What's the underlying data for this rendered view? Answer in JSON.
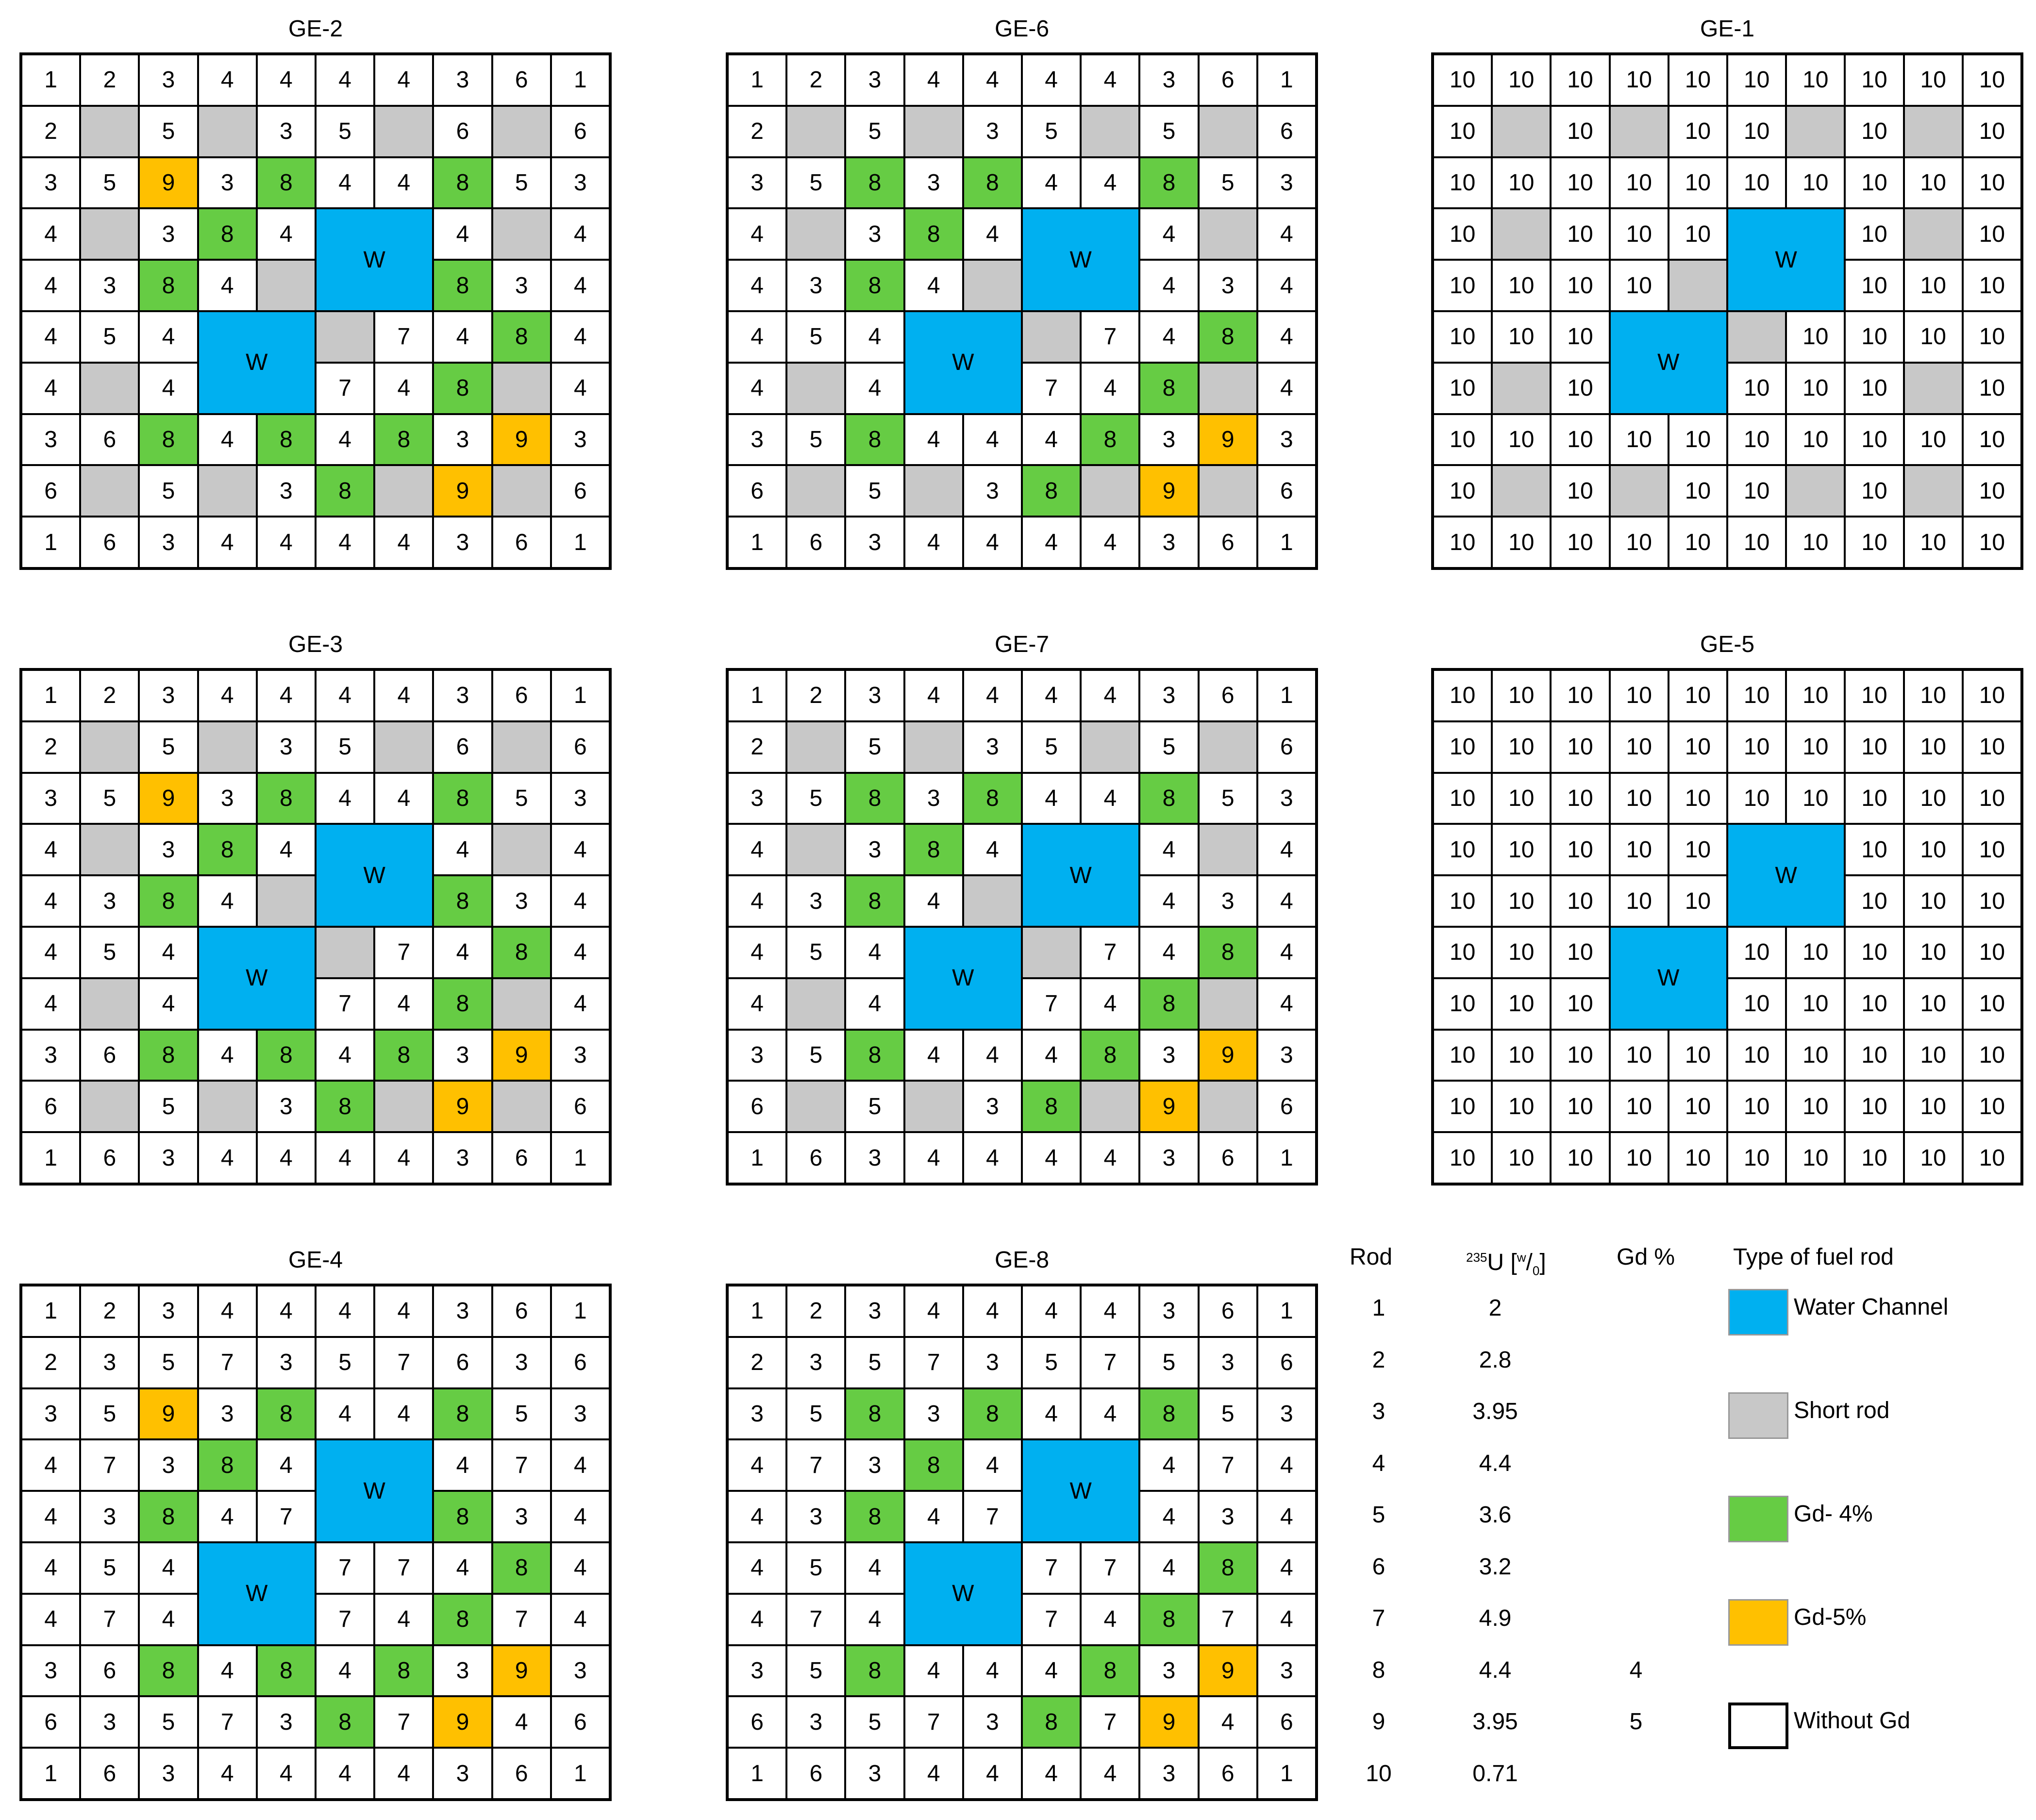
{
  "assemblies": [
    {
      "id": "ge2",
      "title": "GE-2",
      "rows": [
        [
          "1",
          "2",
          "3",
          "4",
          "4",
          "4",
          "4",
          "3",
          "6",
          "1"
        ],
        [
          "2",
          "",
          "5",
          "",
          "3",
          "5",
          "",
          "6",
          "",
          "6"
        ],
        [
          "3",
          "5",
          "9",
          "3",
          "8",
          "4",
          "4",
          "8",
          "5",
          "3"
        ],
        [
          "4",
          "",
          "3",
          "8",
          "4",
          "W",
          "W",
          "4",
          "",
          "4"
        ],
        [
          "4",
          "3",
          "8",
          "4",
          "",
          "W",
          "W",
          "8",
          "3",
          "4"
        ],
        [
          "4",
          "5",
          "4",
          "W",
          "W",
          "",
          "7",
          "4",
          "8",
          "4"
        ],
        [
          "4",
          "",
          "4",
          "W",
          "W",
          "7",
          "4",
          "8",
          "",
          "4"
        ],
        [
          "3",
          "6",
          "8",
          "4",
          "8",
          "4",
          "8",
          "3",
          "9",
          "3"
        ],
        [
          "6",
          "",
          "5",
          "",
          "3",
          "8",
          "",
          "9",
          "",
          "6"
        ],
        [
          "1",
          "6",
          "3",
          "4",
          "4",
          "4",
          "4",
          "3",
          "6",
          "1"
        ]
      ]
    },
    {
      "id": "ge6",
      "title": "GE-6",
      "rows": [
        [
          "1",
          "2",
          "3",
          "4",
          "4",
          "4",
          "4",
          "3",
          "6",
          "1"
        ],
        [
          "2",
          "",
          "5",
          "",
          "3",
          "5",
          "",
          "5",
          "",
          "6"
        ],
        [
          "3",
          "5",
          "8",
          "3",
          "8",
          "4",
          "4",
          "8",
          "5",
          "3"
        ],
        [
          "4",
          "",
          "3",
          "8",
          "4",
          "W",
          "W",
          "4",
          "",
          "4"
        ],
        [
          "4",
          "3",
          "8",
          "4",
          "",
          "W",
          "W",
          "4",
          "3",
          "4"
        ],
        [
          "4",
          "5",
          "4",
          "W",
          "W",
          "",
          "7",
          "4",
          "8",
          "4"
        ],
        [
          "4",
          "",
          "4",
          "W",
          "W",
          "7",
          "4",
          "8",
          "",
          "4"
        ],
        [
          "3",
          "5",
          "8",
          "4",
          "4",
          "4",
          "8",
          "3",
          "9",
          "3"
        ],
        [
          "6",
          "",
          "5",
          "",
          "3",
          "8",
          "",
          "9",
          "",
          "6"
        ],
        [
          "1",
          "6",
          "3",
          "4",
          "4",
          "4",
          "4",
          "3",
          "6",
          "1"
        ]
      ]
    },
    {
      "id": "ge1",
      "title": "GE-1",
      "rows": [
        [
          "10",
          "10",
          "10",
          "10",
          "10",
          "10",
          "10",
          "10",
          "10",
          "10"
        ],
        [
          "10",
          "",
          "10",
          "",
          "10",
          "10",
          "",
          "10",
          "",
          "10"
        ],
        [
          "10",
          "10",
          "10",
          "10",
          "10",
          "10",
          "10",
          "10",
          "10",
          "10"
        ],
        [
          "10",
          "",
          "10",
          "10",
          "10",
          "W",
          "W",
          "10",
          "",
          "10"
        ],
        [
          "10",
          "10",
          "10",
          "10",
          "",
          "W",
          "W",
          "10",
          "10",
          "10"
        ],
        [
          "10",
          "10",
          "10",
          "W",
          "W",
          "",
          "10",
          "10",
          "10",
          "10"
        ],
        [
          "10",
          "",
          "10",
          "W",
          "W",
          "10",
          "10",
          "10",
          "",
          "10"
        ],
        [
          "10",
          "10",
          "10",
          "10",
          "10",
          "10",
          "10",
          "10",
          "10",
          "10"
        ],
        [
          "10",
          "",
          "10",
          "",
          "10",
          "10",
          "",
          "10",
          "",
          "10"
        ],
        [
          "10",
          "10",
          "10",
          "10",
          "10",
          "10",
          "10",
          "10",
          "10",
          "10"
        ]
      ]
    },
    {
      "id": "ge3",
      "title": "GE-3",
      "rows": [
        [
          "1",
          "2",
          "3",
          "4",
          "4",
          "4",
          "4",
          "3",
          "6",
          "1"
        ],
        [
          "2",
          "",
          "5",
          "",
          "3",
          "5",
          "",
          "6",
          "",
          "6"
        ],
        [
          "3",
          "5",
          "9",
          "3",
          "8",
          "4",
          "4",
          "8",
          "5",
          "3"
        ],
        [
          "4",
          "",
          "3",
          "8",
          "4",
          "W",
          "W",
          "4",
          "",
          "4"
        ],
        [
          "4",
          "3",
          "8",
          "4",
          "",
          "W",
          "W",
          "8",
          "3",
          "4"
        ],
        [
          "4",
          "5",
          "4",
          "W",
          "W",
          "",
          "7",
          "4",
          "8",
          "4"
        ],
        [
          "4",
          "",
          "4",
          "W",
          "W",
          "7",
          "4",
          "8",
          "",
          "4"
        ],
        [
          "3",
          "6",
          "8",
          "4",
          "8",
          "4",
          "8",
          "3",
          "9",
          "3"
        ],
        [
          "6",
          "",
          "5",
          "",
          "3",
          "8",
          "",
          "9",
          "",
          "6"
        ],
        [
          "1",
          "6",
          "3",
          "4",
          "4",
          "4",
          "4",
          "3",
          "6",
          "1"
        ]
      ]
    },
    {
      "id": "ge7",
      "title": "GE-7",
      "rows": [
        [
          "1",
          "2",
          "3",
          "4",
          "4",
          "4",
          "4",
          "3",
          "6",
          "1"
        ],
        [
          "2",
          "",
          "5",
          "",
          "3",
          "5",
          "",
          "5",
          "",
          "6"
        ],
        [
          "3",
          "5",
          "8",
          "3",
          "8",
          "4",
          "4",
          "8",
          "5",
          "3"
        ],
        [
          "4",
          "",
          "3",
          "8",
          "4",
          "W",
          "W",
          "4",
          "",
          "4"
        ],
        [
          "4",
          "3",
          "8",
          "4",
          "",
          "W",
          "W",
          "4",
          "3",
          "4"
        ],
        [
          "4",
          "5",
          "4",
          "W",
          "W",
          "",
          "7",
          "4",
          "8",
          "4"
        ],
        [
          "4",
          "",
          "4",
          "W",
          "W",
          "7",
          "4",
          "8",
          "",
          "4"
        ],
        [
          "3",
          "5",
          "8",
          "4",
          "4",
          "4",
          "8",
          "3",
          "9",
          "3"
        ],
        [
          "6",
          "",
          "5",
          "",
          "3",
          "8",
          "",
          "9",
          "",
          "6"
        ],
        [
          "1",
          "6",
          "3",
          "4",
          "4",
          "4",
          "4",
          "3",
          "6",
          "1"
        ]
      ]
    },
    {
      "id": "ge5",
      "title": "GE-5",
      "rows": [
        [
          "10",
          "10",
          "10",
          "10",
          "10",
          "10",
          "10",
          "10",
          "10",
          "10"
        ],
        [
          "10",
          "10",
          "10",
          "10",
          "10",
          "10",
          "10",
          "10",
          "10",
          "10"
        ],
        [
          "10",
          "10",
          "10",
          "10",
          "10",
          "10",
          "10",
          "10",
          "10",
          "10"
        ],
        [
          "10",
          "10",
          "10",
          "10",
          "10",
          "W",
          "W",
          "10",
          "10",
          "10"
        ],
        [
          "10",
          "10",
          "10",
          "10",
          "10",
          "W",
          "W",
          "10",
          "10",
          "10"
        ],
        [
          "10",
          "10",
          "10",
          "W",
          "W",
          "10",
          "10",
          "10",
          "10",
          "10"
        ],
        [
          "10",
          "10",
          "10",
          "W",
          "W",
          "10",
          "10",
          "10",
          "10",
          "10"
        ],
        [
          "10",
          "10",
          "10",
          "10",
          "10",
          "10",
          "10",
          "10",
          "10",
          "10"
        ],
        [
          "10",
          "10",
          "10",
          "10",
          "10",
          "10",
          "10",
          "10",
          "10",
          "10"
        ],
        [
          "10",
          "10",
          "10",
          "10",
          "10",
          "10",
          "10",
          "10",
          "10",
          "10"
        ]
      ]
    },
    {
      "id": "ge4",
      "title": "GE-4",
      "rows": [
        [
          "1",
          "2",
          "3",
          "4",
          "4",
          "4",
          "4",
          "3",
          "6",
          "1"
        ],
        [
          "2",
          "3",
          "5",
          "7",
          "3",
          "5",
          "7",
          "6",
          "3",
          "6"
        ],
        [
          "3",
          "5",
          "9",
          "3",
          "8",
          "4",
          "4",
          "8",
          "5",
          "3"
        ],
        [
          "4",
          "7",
          "3",
          "8",
          "4",
          "W",
          "W",
          "4",
          "7",
          "4"
        ],
        [
          "4",
          "3",
          "8",
          "4",
          "7",
          "W",
          "W",
          "8",
          "3",
          "4"
        ],
        [
          "4",
          "5",
          "4",
          "W",
          "W",
          "7",
          "7",
          "4",
          "8",
          "4"
        ],
        [
          "4",
          "7",
          "4",
          "W",
          "W",
          "7",
          "4",
          "8",
          "7",
          "4"
        ],
        [
          "3",
          "6",
          "8",
          "4",
          "8",
          "4",
          "8",
          "3",
          "9",
          "3"
        ],
        [
          "6",
          "3",
          "5",
          "7",
          "3",
          "8",
          "7",
          "9",
          "4",
          "6"
        ],
        [
          "1",
          "6",
          "3",
          "4",
          "4",
          "4",
          "4",
          "3",
          "6",
          "1"
        ]
      ]
    },
    {
      "id": "ge8",
      "title": "GE-8",
      "rows": [
        [
          "1",
          "2",
          "3",
          "4",
          "4",
          "4",
          "4",
          "3",
          "6",
          "1"
        ],
        [
          "2",
          "3",
          "5",
          "7",
          "3",
          "5",
          "7",
          "5",
          "3",
          "6"
        ],
        [
          "3",
          "5",
          "8",
          "3",
          "8",
          "4",
          "4",
          "8",
          "5",
          "3"
        ],
        [
          "4",
          "7",
          "3",
          "8",
          "4",
          "W",
          "W",
          "4",
          "7",
          "4"
        ],
        [
          "4",
          "3",
          "8",
          "4",
          "7",
          "W",
          "W",
          "4",
          "3",
          "4"
        ],
        [
          "4",
          "5",
          "4",
          "W",
          "W",
          "7",
          "7",
          "4",
          "8",
          "4"
        ],
        [
          "4",
          "7",
          "4",
          "W",
          "W",
          "7",
          "4",
          "8",
          "7",
          "4"
        ],
        [
          "3",
          "5",
          "8",
          "4",
          "4",
          "4",
          "8",
          "3",
          "9",
          "3"
        ],
        [
          "6",
          "3",
          "5",
          "7",
          "3",
          "8",
          "7",
          "9",
          "4",
          "6"
        ],
        [
          "1",
          "6",
          "3",
          "4",
          "4",
          "4",
          "4",
          "3",
          "6",
          "1"
        ]
      ]
    }
  ],
  "legend": {
    "headers": {
      "rod": "Rod",
      "u235_prefix": "235",
      "u235_main": "U [",
      "u235_unit_w": "w",
      "u235_unit_sep": "/",
      "u235_unit_o": "0",
      "u235_close": "]",
      "gd": "Gd %",
      "type": "Type of fuel rod"
    },
    "rods": [
      {
        "rod": "1",
        "u235": "2",
        "gd": ""
      },
      {
        "rod": "2",
        "u235": "2.8",
        "gd": ""
      },
      {
        "rod": "3",
        "u235": "3.95",
        "gd": ""
      },
      {
        "rod": "4",
        "u235": "4.4",
        "gd": ""
      },
      {
        "rod": "5",
        "u235": "3.6",
        "gd": ""
      },
      {
        "rod": "6",
        "u235": "3.2",
        "gd": ""
      },
      {
        "rod": "7",
        "u235": "4.9",
        "gd": ""
      },
      {
        "rod": "8",
        "u235": "4.4",
        "gd": "4"
      },
      {
        "rod": "9",
        "u235": "3.95",
        "gd": "5"
      },
      {
        "rod": "10",
        "u235": "0.71",
        "gd": ""
      }
    ],
    "types": [
      {
        "label": "Water Channel",
        "color": "#00b0f0"
      },
      {
        "label": "Short rod",
        "color": "#c8c8c8"
      },
      {
        "label": "Gd- 4%",
        "color": "#66cc44"
      },
      {
        "label": "Gd-5%",
        "color": "#ffc000"
      },
      {
        "label": "Without Gd",
        "color": "#ffffff"
      }
    ]
  }
}
